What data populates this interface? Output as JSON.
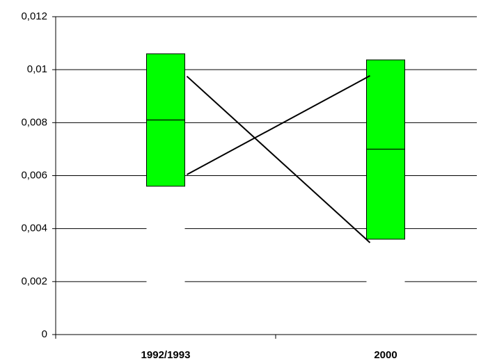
{
  "chart_data": {
    "type": "box",
    "categories": [
      "1992/1993",
      "2000"
    ],
    "boxes": [
      {
        "low": 0.0056,
        "median": 0.0081,
        "high": 0.0106
      },
      {
        "low": 0.0036,
        "median": 0.007,
        "high": 0.01037
      }
    ],
    "box_color": "#00ff00",
    "lines": [
      {
        "color": "#000000",
        "values": [
          0.00975,
          0.00347
        ]
      },
      {
        "color": "#000000",
        "values": [
          0.00604,
          0.00977
        ]
      }
    ],
    "ylim": [
      0,
      0.012
    ],
    "yticks": [
      0,
      {
        "value": 0.002,
        "label": "0,002"
      },
      {
        "value": 0.004,
        "label": "0,004"
      },
      {
        "value": 0.006,
        "label": "0,006"
      },
      {
        "value": 0.008,
        "label": "0,008"
      },
      {
        "value": 0.01,
        "label": "0,01"
      },
      {
        "value": 0.012,
        "label": "0,012"
      }
    ],
    "grid": true
  }
}
